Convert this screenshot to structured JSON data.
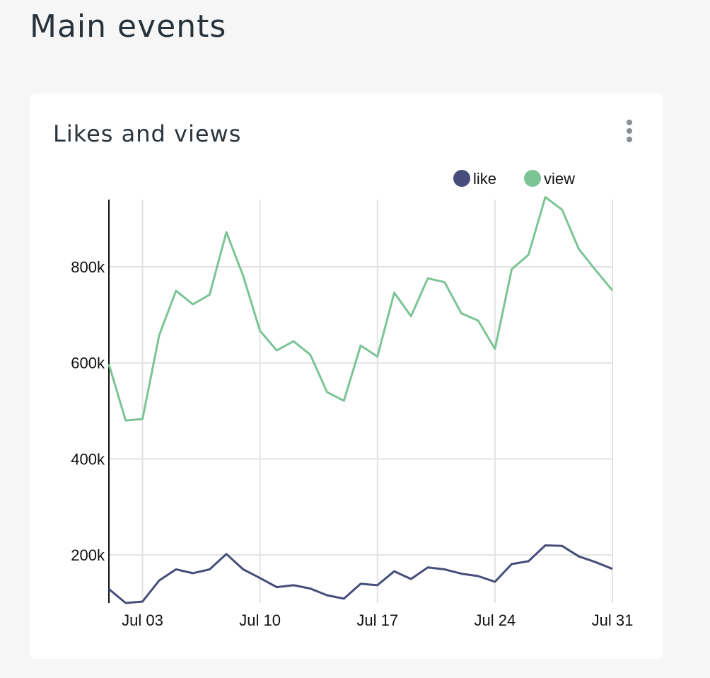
{
  "page": {
    "title": "Main events"
  },
  "card": {
    "title": "Likes and views",
    "menu_icon": "more-vertical-icon"
  },
  "colors": {
    "like": "#464d7a",
    "view": "#7bc495",
    "grid": "#e3e3e3",
    "axis": "#111111"
  },
  "chart_data": {
    "type": "line",
    "title": "Likes and views",
    "xlabel": "",
    "ylabel": "",
    "x": [
      "Jul 01",
      "Jul 02",
      "Jul 03",
      "Jul 04",
      "Jul 05",
      "Jul 06",
      "Jul 07",
      "Jul 08",
      "Jul 09",
      "Jul 10",
      "Jul 11",
      "Jul 12",
      "Jul 13",
      "Jul 14",
      "Jul 15",
      "Jul 16",
      "Jul 17",
      "Jul 18",
      "Jul 19",
      "Jul 20",
      "Jul 21",
      "Jul 22",
      "Jul 23",
      "Jul 24",
      "Jul 25",
      "Jul 26",
      "Jul 27",
      "Jul 28",
      "Jul 29",
      "Jul 30",
      "Jul 31"
    ],
    "x_ticks": [
      "Jul 03",
      "Jul 10",
      "Jul 17",
      "Jul 24",
      "Jul 31"
    ],
    "y_ticks": [
      200000,
      400000,
      600000,
      800000
    ],
    "y_tick_labels": [
      "200k",
      "400k",
      "600k",
      "800k"
    ],
    "ylim": [
      100000,
      940000
    ],
    "grid": true,
    "legend_position": "top-right",
    "series": [
      {
        "name": "like",
        "values": [
          129000,
          100000,
          103000,
          147000,
          170000,
          162000,
          170000,
          202000,
          170000,
          152000,
          133000,
          137000,
          130000,
          116000,
          109000,
          140000,
          137000,
          166000,
          150000,
          174000,
          170000,
          161000,
          156000,
          144000,
          181000,
          187000,
          220000,
          219000,
          197000,
          185000,
          171000
        ]
      },
      {
        "name": "view",
        "values": [
          597000,
          480000,
          483000,
          658000,
          750000,
          722000,
          742000,
          872000,
          781000,
          667000,
          626000,
          645000,
          617000,
          539000,
          521000,
          636000,
          613000,
          746000,
          697000,
          776000,
          768000,
          703000,
          688000,
          629000,
          795000,
          825000,
          945000,
          919000,
          837000,
          793000,
          751000
        ]
      }
    ]
  }
}
